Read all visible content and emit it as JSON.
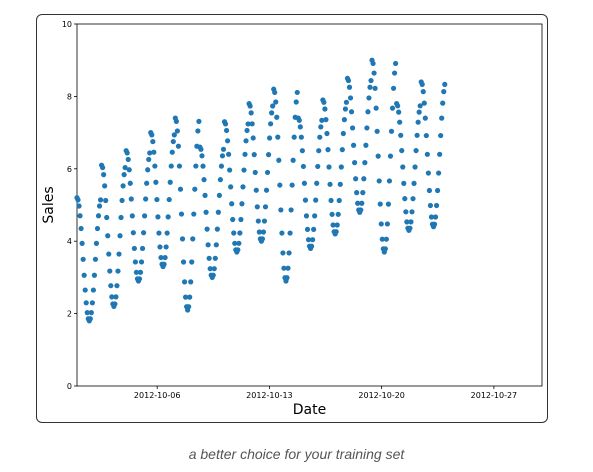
{
  "caption": "a better choice for your training set",
  "chart_data": {
    "type": "scatter",
    "xlabel": "Date",
    "ylabel": "Sales",
    "xlim": [
      "2012-10-01",
      "2012-10-30"
    ],
    "ylim": [
      0,
      10
    ],
    "x_ticks": [
      "2012-10-06",
      "2012-10-13",
      "2012-10-20",
      "2012-10-27"
    ],
    "y_ticks": [
      0,
      2,
      4,
      6,
      8,
      10
    ],
    "grid": false,
    "point_color": "#1f77b4",
    "series": [
      {
        "start": "2012-10-01",
        "end": "2012-10-24",
        "points_per_day": 24,
        "daily_peaks": [
          5.2,
          6.1,
          6.5,
          7.0,
          7.4,
          6.6,
          7.3,
          7.8,
          8.2,
          7.4,
          7.9,
          8.5,
          9.0,
          7.8,
          8.4
        ],
        "daily_troughs": [
          1.8,
          2.2,
          2.9,
          3.3,
          2.1,
          3.0,
          3.7,
          4.0,
          2.9,
          3.8,
          4.2,
          4.8,
          3.7,
          4.3,
          4.4
        ]
      }
    ]
  }
}
